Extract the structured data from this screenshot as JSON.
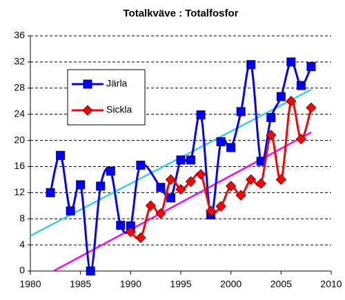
{
  "chart_data": {
    "type": "line",
    "title": "Totalkväve : Totalfosfor",
    "xlim": [
      1980,
      2010
    ],
    "xticks": [
      1980,
      1985,
      1990,
      1995,
      2000,
      2005,
      2010
    ],
    "ylim": [
      0,
      36
    ],
    "yticks": [
      0,
      4,
      8,
      12,
      16,
      20,
      24,
      28,
      32,
      36
    ],
    "grid": true,
    "smooth": true,
    "trendline": true,
    "legend": "upper left",
    "series": [
      {
        "name": "Järla",
        "color": "#0000ff",
        "marker": "square",
        "trend_color": "#33ccee",
        "x": [
          1982,
          1983,
          1984,
          1985,
          1986,
          1987,
          1988,
          1989,
          1990,
          1991,
          1993,
          1994,
          1995,
          1996,
          1997,
          1998,
          1999,
          2000,
          2001,
          2002,
          2003,
          2004,
          2005,
          2006,
          2007,
          2008
        ],
        "values": [
          12,
          17.7,
          9.2,
          13.2,
          0,
          13,
          15.3,
          7,
          6.9,
          16.2,
          12.8,
          11.2,
          17,
          17,
          23.9,
          8.6,
          19.8,
          18.9,
          24.4,
          31.6,
          16.8,
          23.5,
          26.7,
          32,
          28.4,
          31.3
        ]
      },
      {
        "name": "Sickla",
        "color": "#ff0000",
        "marker": "diamond",
        "trend_color": "#ff00ff",
        "x": [
          1990,
          1991,
          1992,
          1993,
          1994,
          1995,
          1996,
          1997,
          1998,
          1999,
          2000,
          2001,
          2002,
          2003,
          2004,
          2005,
          2006,
          2007,
          2008
        ],
        "values": [
          6,
          5.1,
          10,
          8.8,
          14,
          12.5,
          13.7,
          14.8,
          9.2,
          9.9,
          13,
          11.6,
          14,
          13.4,
          20.8,
          14,
          26,
          20.2,
          25
        ]
      }
    ]
  }
}
